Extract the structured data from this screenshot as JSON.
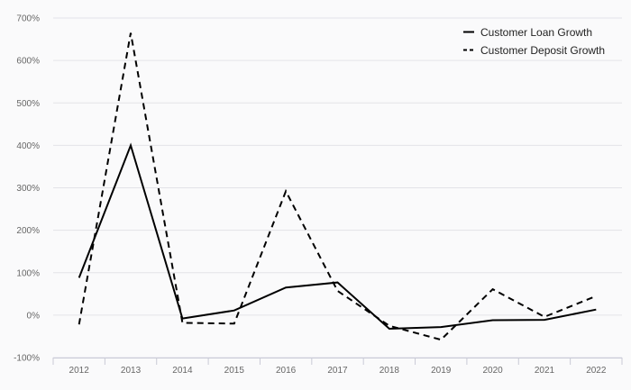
{
  "chart_data": {
    "type": "line",
    "title": "",
    "xlabel": "",
    "ylabel": "",
    "x": [
      "2012",
      "2013",
      "2014",
      "2015",
      "2016",
      "2017",
      "2018",
      "2019",
      "2020",
      "2021",
      "2022"
    ],
    "y_ticks": [
      -100,
      0,
      100,
      200,
      300,
      400,
      500,
      600,
      700
    ],
    "y_tick_labels": [
      "-100%",
      "0%",
      "100%",
      "200%",
      "300%",
      "400%",
      "500%",
      "600%",
      "700%"
    ],
    "ylim": [
      -100,
      700
    ],
    "grid": "horizontal",
    "legend_position": "top-right",
    "series": [
      {
        "name": "Customer Loan Growth",
        "style": "solid",
        "color": "#000000",
        "values": [
          88,
          400,
          -8,
          11,
          65,
          77,
          -32,
          -28,
          -12,
          -11,
          13
        ]
      },
      {
        "name": "Customer Deposit Growth",
        "style": "dashed",
        "color": "#000000",
        "values": [
          -22,
          665,
          -18,
          -20,
          292,
          57,
          -25,
          -58,
          61,
          -4,
          45
        ]
      }
    ]
  }
}
